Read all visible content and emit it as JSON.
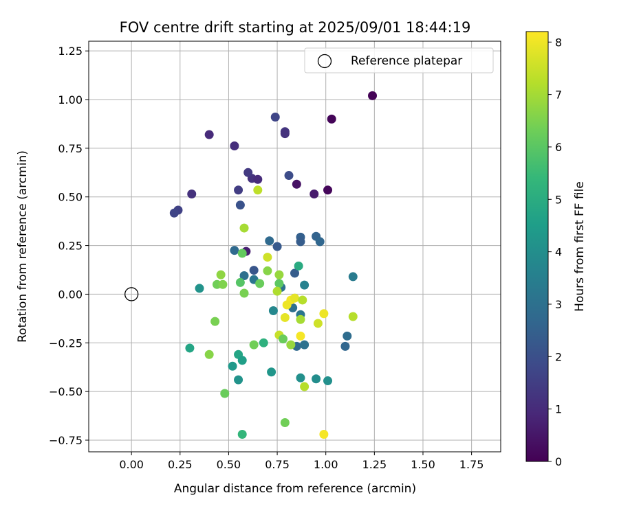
{
  "chart_data": {
    "type": "scatter",
    "title": "FOV centre drift starting at 2025/09/01 18:44:19",
    "xlabel": "Angular distance from reference (arcmin)",
    "ylabel": "Rotation from reference (arcmin)",
    "xlim": [
      -0.22,
      1.9
    ],
    "ylim": [
      -0.81,
      1.3
    ],
    "xticks": [
      "0.00",
      "0.25",
      "0.50",
      "0.75",
      "1.00",
      "1.25",
      "1.50",
      "1.75"
    ],
    "yticks": [
      "−0.75",
      "−0.50",
      "−0.25",
      "0.00",
      "0.25",
      "0.50",
      "0.75",
      "1.00",
      "1.25"
    ],
    "grid": true,
    "legend": {
      "position": "upper right",
      "label": "Reference platepar"
    },
    "reference_point": [
      0.0,
      0.0
    ],
    "colorbar": {
      "label": "Hours from first FF file",
      "range": [
        0,
        8.2
      ],
      "ticks": [
        "0",
        "1",
        "2",
        "3",
        "4",
        "5",
        "6",
        "7",
        "8"
      ],
      "colormap": [
        "#440154",
        "#482878",
        "#3e4989",
        "#31688e",
        "#26828e",
        "#1f9e89",
        "#35b779",
        "#6ece58",
        "#b5de2b",
        "#fde725"
      ]
    },
    "points": [
      [
        1.24,
        1.02,
        0.05
      ],
      [
        1.03,
        0.9,
        0.1
      ],
      [
        1.01,
        0.535,
        0.15
      ],
      [
        0.85,
        0.565,
        0.4
      ],
      [
        0.94,
        0.515,
        0.6
      ],
      [
        0.79,
        0.835,
        1.3
      ],
      [
        0.79,
        0.825,
        1.2
      ],
      [
        0.4,
        0.82,
        1.0
      ],
      [
        0.53,
        0.762,
        1.1
      ],
      [
        0.62,
        0.595,
        1.2
      ],
      [
        0.65,
        0.59,
        1.0
      ],
      [
        0.31,
        0.515,
        1.2
      ],
      [
        0.6,
        0.625,
        1.4
      ],
      [
        0.55,
        0.535,
        1.5
      ],
      [
        0.74,
        0.91,
        1.7
      ],
      [
        0.24,
        0.432,
        1.6
      ],
      [
        0.22,
        0.417,
        1.7
      ],
      [
        0.81,
        0.61,
        1.9
      ],
      [
        0.56,
        0.458,
        2.1
      ],
      [
        0.59,
        0.22,
        0.7
      ],
      [
        0.63,
        0.123,
        2.2
      ],
      [
        0.87,
        0.293,
        2.5
      ],
      [
        0.95,
        0.297,
        2.6
      ],
      [
        0.97,
        0.27,
        2.7
      ],
      [
        0.87,
        0.27,
        2.4
      ],
      [
        0.53,
        0.225,
        2.8
      ],
      [
        0.71,
        0.274,
        2.8
      ],
      [
        0.75,
        0.245,
        2.3
      ],
      [
        0.58,
        0.095,
        3.0
      ],
      [
        0.63,
        0.075,
        3.2
      ],
      [
        0.84,
        0.108,
        2.4
      ],
      [
        1.14,
        0.09,
        3.4
      ],
      [
        0.89,
        0.047,
        3.6
      ],
      [
        0.77,
        0.035,
        3.1
      ],
      [
        0.35,
        0.03,
        4.2
      ],
      [
        0.73,
        -0.085,
        3.8
      ],
      [
        0.83,
        -0.07,
        3.0
      ],
      [
        0.87,
        -0.105,
        3.2
      ],
      [
        1.11,
        -0.215,
        2.9
      ],
      [
        1.1,
        -0.268,
        2.7
      ],
      [
        0.85,
        -0.268,
        2.8
      ],
      [
        0.89,
        -0.26,
        3.1
      ],
      [
        0.3,
        -0.277,
        4.8
      ],
      [
        0.68,
        -0.25,
        5.2
      ],
      [
        0.55,
        -0.31,
        4.8
      ],
      [
        0.57,
        -0.34,
        4.6
      ],
      [
        0.52,
        -0.37,
        4.4
      ],
      [
        0.72,
        -0.4,
        4.3
      ],
      [
        0.55,
        -0.44,
        4.2
      ],
      [
        0.87,
        -0.43,
        4.1
      ],
      [
        0.95,
        -0.435,
        4.0
      ],
      [
        1.01,
        -0.445,
        4.1
      ],
      [
        0.86,
        0.145,
        5.0
      ],
      [
        0.57,
        -0.72,
        5.4
      ],
      [
        0.58,
        0.34,
        7.1
      ],
      [
        0.65,
        0.535,
        7.4
      ],
      [
        0.57,
        0.21,
        6.2
      ],
      [
        0.7,
        0.19,
        7.6
      ],
      [
        0.46,
        0.1,
        6.8
      ],
      [
        0.44,
        0.05,
        6.4
      ],
      [
        0.47,
        0.05,
        6.6
      ],
      [
        0.56,
        0.06,
        6.0
      ],
      [
        0.66,
        0.055,
        6.3
      ],
      [
        0.7,
        0.12,
        6.7
      ],
      [
        0.76,
        0.1,
        6.9
      ],
      [
        0.76,
        0.055,
        6.1
      ],
      [
        0.58,
        0.005,
        6.5
      ],
      [
        0.75,
        0.015,
        7.2
      ],
      [
        0.82,
        -0.03,
        8.1
      ],
      [
        0.84,
        -0.02,
        7.9
      ],
      [
        0.8,
        -0.055,
        8.0
      ],
      [
        0.88,
        -0.03,
        7.3
      ],
      [
        0.79,
        -0.12,
        7.9
      ],
      [
        0.87,
        -0.13,
        7.1
      ],
      [
        0.43,
        -0.14,
        6.5
      ],
      [
        0.96,
        -0.15,
        7.6
      ],
      [
        0.99,
        -0.1,
        8.0
      ],
      [
        1.14,
        -0.115,
        7.3
      ],
      [
        0.76,
        -0.21,
        7.5
      ],
      [
        0.78,
        -0.23,
        6.3
      ],
      [
        0.82,
        -0.26,
        6.9
      ],
      [
        0.87,
        -0.215,
        8.1
      ],
      [
        0.63,
        -0.26,
        6.4
      ],
      [
        0.4,
        -0.31,
        6.7
      ],
      [
        0.48,
        -0.51,
        6.3
      ],
      [
        0.89,
        -0.475,
        7.3
      ],
      [
        0.79,
        -0.66,
        6.4
      ],
      [
        0.99,
        -0.72,
        8.1
      ]
    ]
  }
}
